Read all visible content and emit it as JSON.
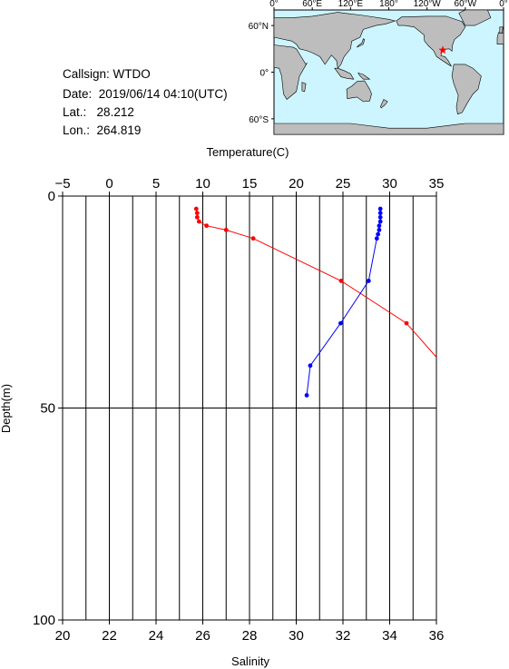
{
  "info": {
    "callsign_label": "Callsign:",
    "callsign": "WTDO",
    "date_label": "Date:",
    "date": "2019/06/14 04:10(UTC)",
    "lat_label": "Lat.:",
    "lat": "28.212",
    "lon_label": "Lon.:",
    "lon": "264.819"
  },
  "map": {
    "top_labels": [
      "0°",
      "60°E",
      "120°E",
      "180°",
      "120°W",
      "60°W",
      "0°"
    ],
    "left_labels": [
      "60°N",
      "0°",
      "60°S"
    ],
    "ocean_color": "#ccf5ff",
    "land_color": "#bdbdbd",
    "marker_color": "#ff0000",
    "marker": "star-icon"
  },
  "chart_data": {
    "type": "line",
    "x_top_label": "Temperature(C)",
    "x_bottom_label": "Salinity",
    "ylabel": "Depth(m)",
    "temperature_ticks": [
      "-5",
      "0",
      "5",
      "10",
      "15",
      "20",
      "25",
      "30",
      "35"
    ],
    "salinity_ticks": [
      "20",
      "22",
      "24",
      "26",
      "28",
      "30",
      "32",
      "34",
      "36"
    ],
    "depth_ticks": [
      "0",
      "50",
      "100"
    ],
    "temperature_range": [
      -5,
      35
    ],
    "salinity_range": [
      20,
      36
    ],
    "depth_range": [
      0,
      100
    ],
    "grid": "vertical lines every 1 salinity unit; horizontal line at 50 m",
    "series": [
      {
        "name": "Temperature",
        "axis": "top",
        "color": "#ff0000",
        "depth": [
          3,
          4,
          5,
          6,
          7,
          8,
          10,
          20,
          30,
          38
        ],
        "values": [
          9.3,
          9.4,
          9.4,
          9.6,
          10.4,
          12.5,
          15.4,
          24.8,
          31.8,
          35
        ]
      },
      {
        "name": "Salinity",
        "axis": "bottom",
        "color": "#0000ff",
        "depth": [
          3,
          4,
          5,
          6,
          7,
          8,
          9,
          10,
          20,
          30,
          40,
          47
        ],
        "values": [
          33.6,
          33.6,
          33.6,
          33.6,
          33.55,
          33.55,
          33.5,
          33.45,
          33.1,
          31.9,
          30.6,
          30.45
        ]
      }
    ]
  }
}
